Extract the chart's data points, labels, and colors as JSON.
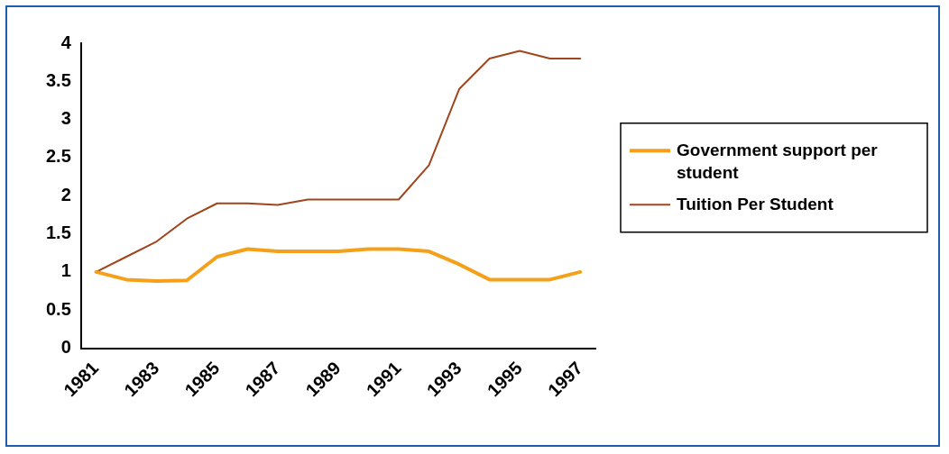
{
  "chart_data": {
    "type": "line",
    "categories": [
      "1981",
      null,
      "1983",
      null,
      "1985",
      null,
      "1987",
      null,
      "1989",
      null,
      "1991",
      null,
      "1993",
      null,
      "1995",
      null,
      "1997"
    ],
    "series": [
      {
        "name": "Government support per student",
        "color": "#f5a01a",
        "values": [
          1,
          0.9,
          0.88,
          0.89,
          1.2,
          1.3,
          1.27,
          1.27,
          1.27,
          1.3,
          1.3,
          1.27,
          1.1,
          0.9,
          0.9,
          0.9,
          1.0
        ]
      },
      {
        "name": "Tuition Per Student",
        "color": "#a0461e",
        "values": [
          1,
          1.2,
          1.4,
          1.7,
          1.9,
          1.9,
          1.88,
          1.95,
          1.95,
          1.95,
          1.95,
          2.4,
          3.4,
          3.8,
          3.9,
          3.8,
          3.8
        ]
      }
    ],
    "ylim": [
      0,
      4
    ],
    "yticks": [
      0,
      0.5,
      1,
      1.5,
      2,
      2.5,
      3,
      3.5,
      4
    ],
    "grid": false,
    "legend": "right",
    "marker": "none",
    "line_style": "solid"
  }
}
